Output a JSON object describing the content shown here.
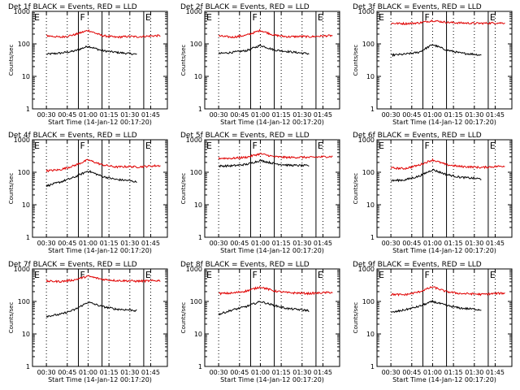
{
  "figure": {
    "xlabel": "Start Time (14-Jan-12 00:17:20)",
    "ylabel": "Counts/sec",
    "legend_text": "BLACK = Events, RED = LLD",
    "x_tick_labels": [
      "00:30",
      "00:45",
      "01:00",
      "01:15",
      "01:30",
      "01:45"
    ],
    "y_tick_labels": [
      "1",
      "10",
      "100",
      "1000"
    ],
    "marker_labels": [
      "E",
      "F",
      "E"
    ],
    "colors": {
      "events": "#000000",
      "lld": "#e00000",
      "axes": "#000000",
      "background": "#ffffff"
    }
  },
  "chart_data": [
    {
      "type": "line",
      "title": "Det 1f BLACK = Events, RED = LLD",
      "xlabel": "Start Time (14-Jan-12 00:17:20)",
      "ylabel": "Counts/sec",
      "xlim": [
        "00:20",
        "01:57"
      ],
      "ylim": [
        1,
        1000
      ],
      "yscale": "log",
      "x": [
        "00:30",
        "00:40",
        "00:50",
        "01:00",
        "01:10",
        "01:20",
        "01:30",
        "01:35",
        "01:45",
        "01:52"
      ],
      "series": [
        {
          "name": "Events",
          "values": [
            48,
            52,
            60,
            85,
            62,
            55,
            50,
            48,
            null,
            null
          ]
        },
        {
          "name": "LLD",
          "values": [
            180,
            160,
            190,
            260,
            180,
            160,
            170,
            165,
            175,
            180
          ]
        }
      ],
      "markers": [
        {
          "label": "E",
          "time": "00:20"
        },
        {
          "label": "F",
          "time": "00:53"
        },
        {
          "label": "E",
          "time": "01:40"
        }
      ]
    },
    {
      "type": "line",
      "title": "Det 2f BLACK = Events, RED = LLD",
      "xlabel": "Start Time (14-Jan-12 00:17:20)",
      "ylabel": "Counts/sec",
      "xlim": [
        "00:20",
        "01:57"
      ],
      "ylim": [
        1,
        1000
      ],
      "yscale": "log",
      "x": [
        "00:30",
        "00:40",
        "00:50",
        "01:00",
        "01:10",
        "01:20",
        "01:30",
        "01:35",
        "01:45",
        "01:52"
      ],
      "series": [
        {
          "name": "Events",
          "values": [
            50,
            55,
            62,
            90,
            65,
            58,
            52,
            50,
            null,
            null
          ]
        },
        {
          "name": "LLD",
          "values": [
            175,
            160,
            185,
            260,
            185,
            165,
            170,
            165,
            175,
            180
          ]
        }
      ],
      "markers": [
        {
          "label": "E",
          "time": "00:20"
        },
        {
          "label": "F",
          "time": "00:53"
        },
        {
          "label": "E",
          "time": "01:40"
        }
      ]
    },
    {
      "type": "line",
      "title": "Det 3f BLACK = Events, RED = LLD",
      "xlabel": "Start Time (14-Jan-12 00:17:20)",
      "ylabel": "Counts/sec",
      "xlim": [
        "00:20",
        "01:57"
      ],
      "ylim": [
        1,
        1000
      ],
      "yscale": "log",
      "x": [
        "00:30",
        "00:40",
        "00:50",
        "01:00",
        "01:10",
        "01:20",
        "01:30",
        "01:35",
        "01:45",
        "01:52"
      ],
      "series": [
        {
          "name": "Events",
          "values": [
            45,
            48,
            55,
            95,
            65,
            52,
            48,
            45,
            null,
            null
          ]
        },
        {
          "name": "LLD",
          "values": [
            430,
            420,
            440,
            520,
            460,
            440,
            430,
            430,
            440,
            440
          ]
        }
      ],
      "markers": [
        {
          "label": "E",
          "time": "00:20"
        },
        {
          "label": "F",
          "time": "00:53"
        },
        {
          "label": "E",
          "time": "01:40"
        }
      ]
    },
    {
      "type": "line",
      "title": "Det 4f BLACK = Events, RED = LLD",
      "xlabel": "Start Time (14-Jan-12 00:17:20)",
      "ylabel": "Counts/sec",
      "xlim": [
        "00:20",
        "01:57"
      ],
      "ylim": [
        1,
        1000
      ],
      "yscale": "log",
      "x": [
        "00:30",
        "00:40",
        "00:50",
        "01:00",
        "01:10",
        "01:20",
        "01:30",
        "01:35",
        "01:45",
        "01:52"
      ],
      "series": [
        {
          "name": "Events",
          "values": [
            38,
            50,
            70,
            110,
            75,
            60,
            55,
            50,
            null,
            null
          ]
        },
        {
          "name": "LLD",
          "values": [
            110,
            120,
            160,
            240,
            170,
            145,
            150,
            145,
            155,
            160
          ]
        }
      ],
      "markers": [
        {
          "label": "E",
          "time": "00:20"
        },
        {
          "label": "F",
          "time": "00:53"
        },
        {
          "label": "E",
          "time": "01:40"
        }
      ]
    },
    {
      "type": "line",
      "title": "Det 5f BLACK = Events, RED = LLD",
      "xlabel": "Start Time (14-Jan-12 00:17:20)",
      "ylabel": "Counts/sec",
      "xlim": [
        "00:20",
        "01:57"
      ],
      "ylim": [
        1,
        1000
      ],
      "yscale": "log",
      "x": [
        "00:30",
        "00:40",
        "00:50",
        "01:00",
        "01:10",
        "01:20",
        "01:30",
        "01:35",
        "01:45",
        "01:52"
      ],
      "series": [
        {
          "name": "Events",
          "values": [
            155,
            158,
            175,
            230,
            185,
            165,
            160,
            160,
            null,
            null
          ]
        },
        {
          "name": "LLD",
          "values": [
            270,
            268,
            290,
            370,
            300,
            285,
            290,
            285,
            300,
            305
          ]
        }
      ],
      "markers": [
        {
          "label": "E",
          "time": "00:20"
        },
        {
          "label": "F",
          "time": "00:53"
        },
        {
          "label": "E",
          "time": "01:40"
        }
      ]
    },
    {
      "type": "line",
      "title": "Det 6f BLACK = Events, RED = LLD",
      "xlabel": "Start Time (14-Jan-12 00:17:20)",
      "ylabel": "Counts/sec",
      "xlim": [
        "00:20",
        "01:57"
      ],
      "ylim": [
        1,
        1000
      ],
      "yscale": "log",
      "x": [
        "00:30",
        "00:40",
        "00:50",
        "01:00",
        "01:10",
        "01:20",
        "01:30",
        "01:35",
        "01:45",
        "01:52"
      ],
      "series": [
        {
          "name": "Events",
          "values": [
            55,
            58,
            75,
            120,
            85,
            70,
            65,
            62,
            null,
            null
          ]
        },
        {
          "name": "LLD",
          "values": [
            135,
            130,
            165,
            240,
            170,
            150,
            145,
            140,
            150,
            155
          ]
        }
      ],
      "markers": [
        {
          "label": "E",
          "time": "00:20"
        },
        {
          "label": "F",
          "time": "00:53"
        },
        {
          "label": "E",
          "time": "01:40"
        }
      ]
    },
    {
      "type": "line",
      "title": "Det 7f BLACK = Events, RED = LLD",
      "xlabel": "Start Time (14-Jan-12 00:17:20)",
      "ylabel": "Counts/sec",
      "xlim": [
        "00:20",
        "01:57"
      ],
      "ylim": [
        1,
        1000
      ],
      "yscale": "log",
      "x": [
        "00:30",
        "00:40",
        "00:50",
        "01:00",
        "01:10",
        "01:20",
        "01:30",
        "01:35",
        "01:45",
        "01:52"
      ],
      "series": [
        {
          "name": "Events",
          "values": [
            35,
            40,
            55,
            95,
            70,
            58,
            55,
            52,
            null,
            null
          ]
        },
        {
          "name": "LLD",
          "values": [
            420,
            410,
            460,
            600,
            480,
            440,
            430,
            420,
            430,
            440
          ]
        }
      ],
      "markers": [
        {
          "label": "E",
          "time": "00:20"
        },
        {
          "label": "F",
          "time": "00:53"
        },
        {
          "label": "E",
          "time": "01:40"
        }
      ]
    },
    {
      "type": "line",
      "title": "Det 8f BLACK = Events, RED = LLD",
      "xlabel": "Start Time (14-Jan-12 00:17:20)",
      "ylabel": "Counts/sec",
      "xlim": [
        "00:20",
        "01:57"
      ],
      "ylim": [
        1,
        1000
      ],
      "yscale": "log",
      "x": [
        "00:30",
        "00:40",
        "00:50",
        "01:00",
        "01:10",
        "01:20",
        "01:30",
        "01:35",
        "01:45",
        "01:52"
      ],
      "series": [
        {
          "name": "Events",
          "values": [
            40,
            55,
            70,
            100,
            75,
            60,
            55,
            52,
            null,
            null
          ]
        },
        {
          "name": "LLD",
          "values": [
            175,
            180,
            210,
            280,
            210,
            185,
            180,
            175,
            185,
            190
          ]
        }
      ],
      "markers": [
        {
          "label": "E",
          "time": "00:20"
        },
        {
          "label": "F",
          "time": "00:53"
        },
        {
          "label": "E",
          "time": "01:40"
        }
      ]
    },
    {
      "type": "line",
      "title": "Det 9f BLACK = Events, RED = LLD",
      "xlabel": "Start Time (14-Jan-12 00:17:20)",
      "ylabel": "Counts/sec",
      "xlim": [
        "00:20",
        "01:57"
      ],
      "ylim": [
        1,
        1000
      ],
      "yscale": "log",
      "x": [
        "00:30",
        "00:40",
        "00:50",
        "01:00",
        "01:10",
        "01:20",
        "01:30",
        "01:35",
        "01:45",
        "01:52"
      ],
      "series": [
        {
          "name": "Events",
          "values": [
            45,
            55,
            70,
            100,
            75,
            62,
            58,
            55,
            null,
            null
          ]
        },
        {
          "name": "LLD",
          "values": [
            165,
            160,
            195,
            280,
            200,
            175,
            170,
            165,
            175,
            180
          ]
        }
      ],
      "markers": [
        {
          "label": "E",
          "time": "00:20"
        },
        {
          "label": "F",
          "time": "00:53"
        },
        {
          "label": "E",
          "time": "01:40"
        }
      ]
    }
  ]
}
